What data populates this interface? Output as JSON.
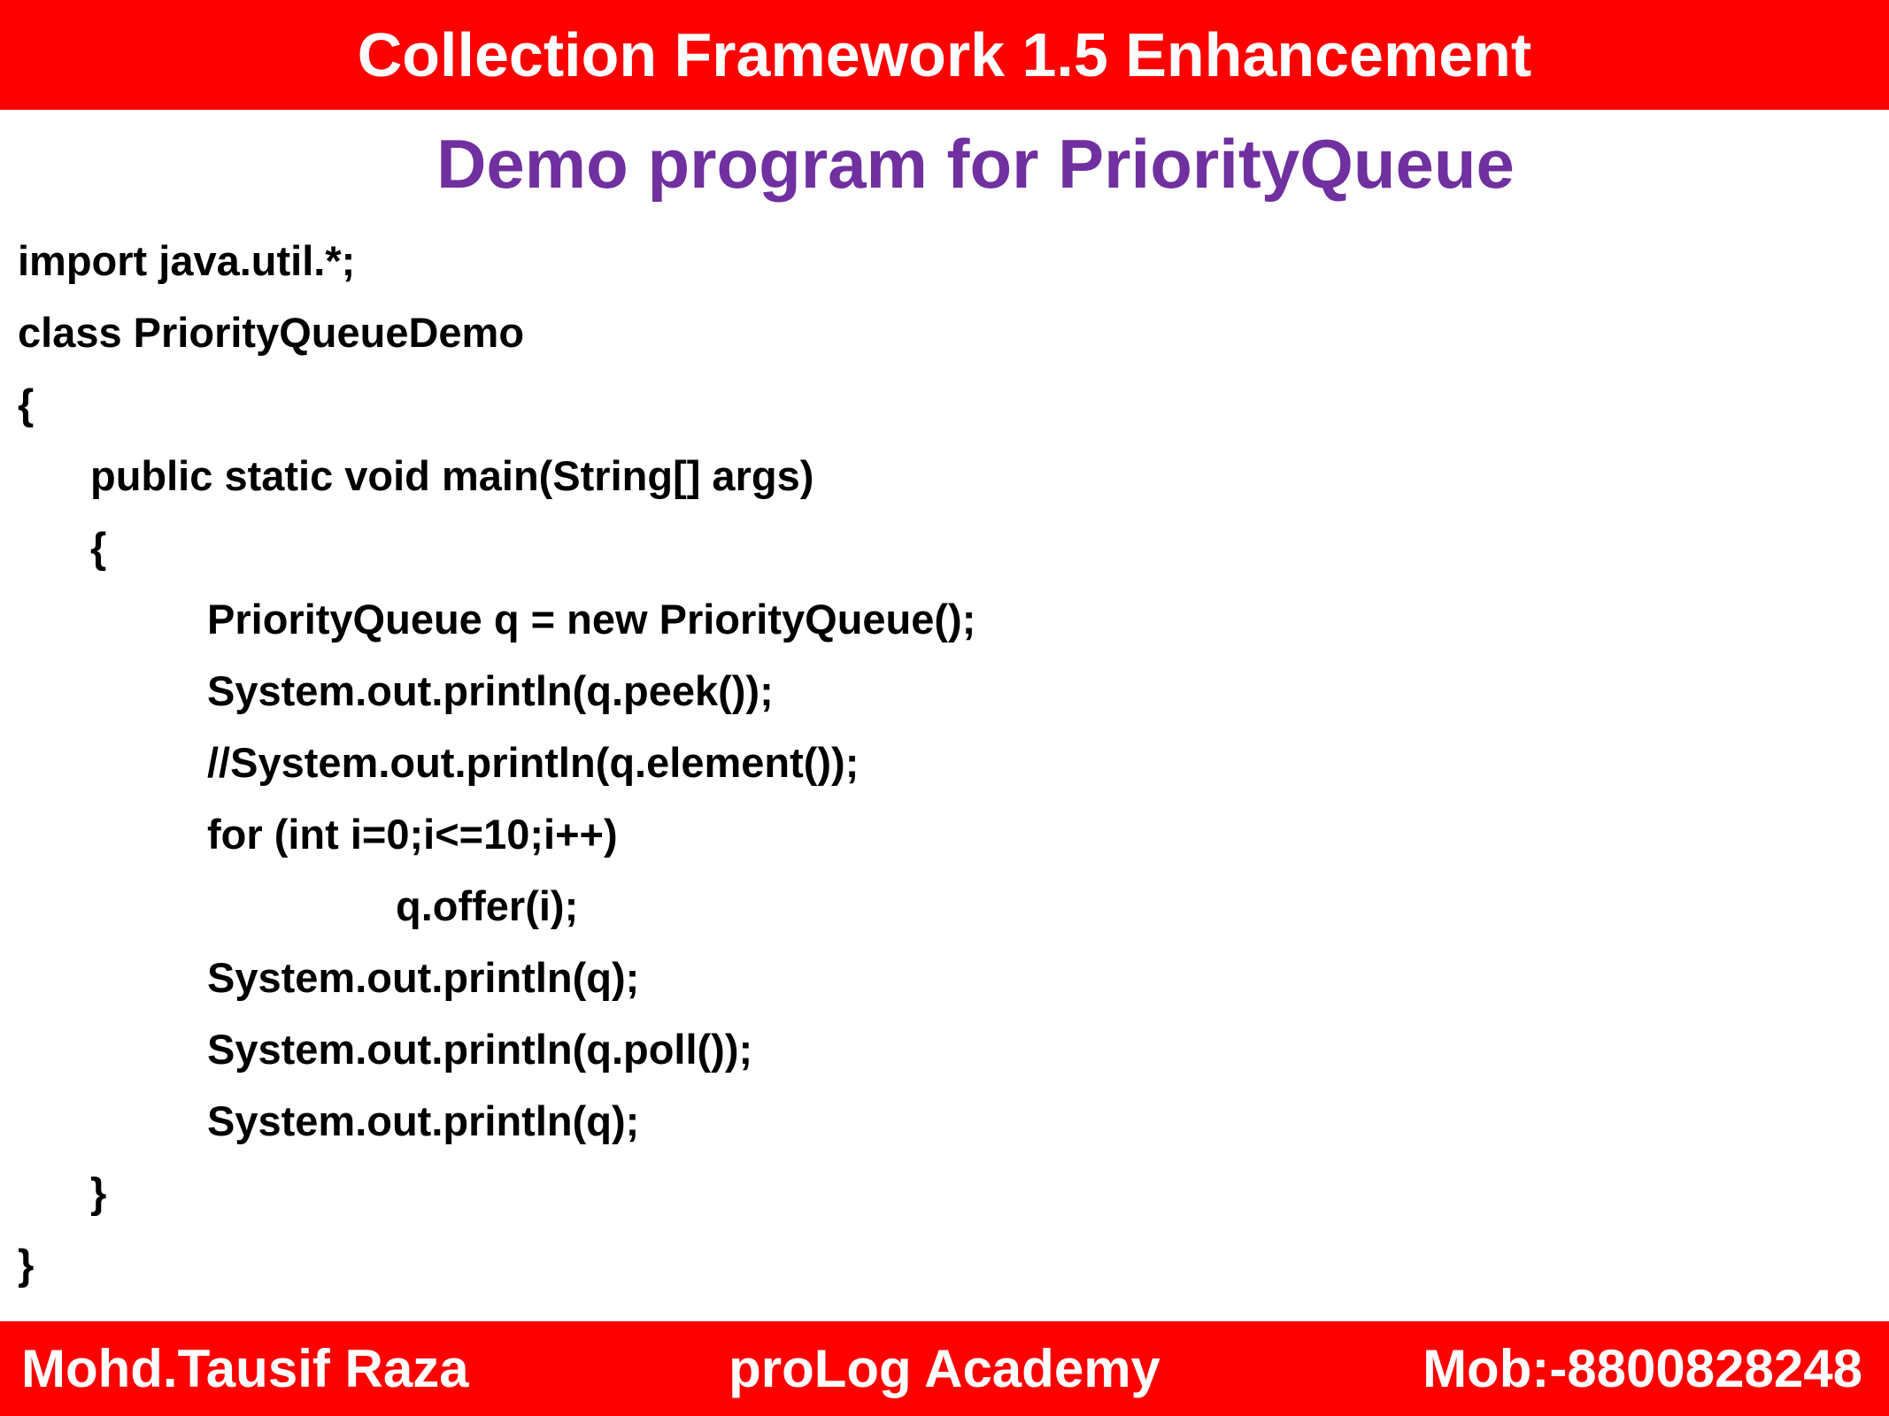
{
  "header": {
    "title": "Collection Framework 1.5 Enhancement"
  },
  "subtitle": "Demo program for PriorityQueue",
  "code": {
    "lines": [
      {
        "indent": 0,
        "text": "import java.util.*;"
      },
      {
        "indent": 0,
        "text": "class PriorityQueueDemo"
      },
      {
        "indent": 0,
        "text": "{"
      },
      {
        "indent": 1,
        "text": "public static void main(String[] args)"
      },
      {
        "indent": 1,
        "text": "{"
      },
      {
        "indent": 2,
        "text": "PriorityQueue q = new PriorityQueue();"
      },
      {
        "indent": 2,
        "text": "System.out.println(q.peek());"
      },
      {
        "indent": 2,
        "text": "//System.out.println(q.element());"
      },
      {
        "indent": 2,
        "text": "for (int i=0;i<=10;i++)"
      },
      {
        "indent": 3,
        "text": "q.offer(i);"
      },
      {
        "indent": 2,
        "text": "System.out.println(q);"
      },
      {
        "indent": 2,
        "text": "System.out.println(q.poll());"
      },
      {
        "indent": 2,
        "text": "System.out.println(q);"
      },
      {
        "indent": 1,
        "text": "}"
      },
      {
        "indent": 0,
        "text": "}"
      }
    ]
  },
  "footer": {
    "author": "Mohd.Tausif Raza",
    "academy": "proLog Academy",
    "contact": "Mob:-8800828248"
  },
  "colors": {
    "bar": "#ff0000",
    "subtitle": "#7030a0",
    "bar_text": "#ffffff",
    "code_text": "#000000"
  }
}
